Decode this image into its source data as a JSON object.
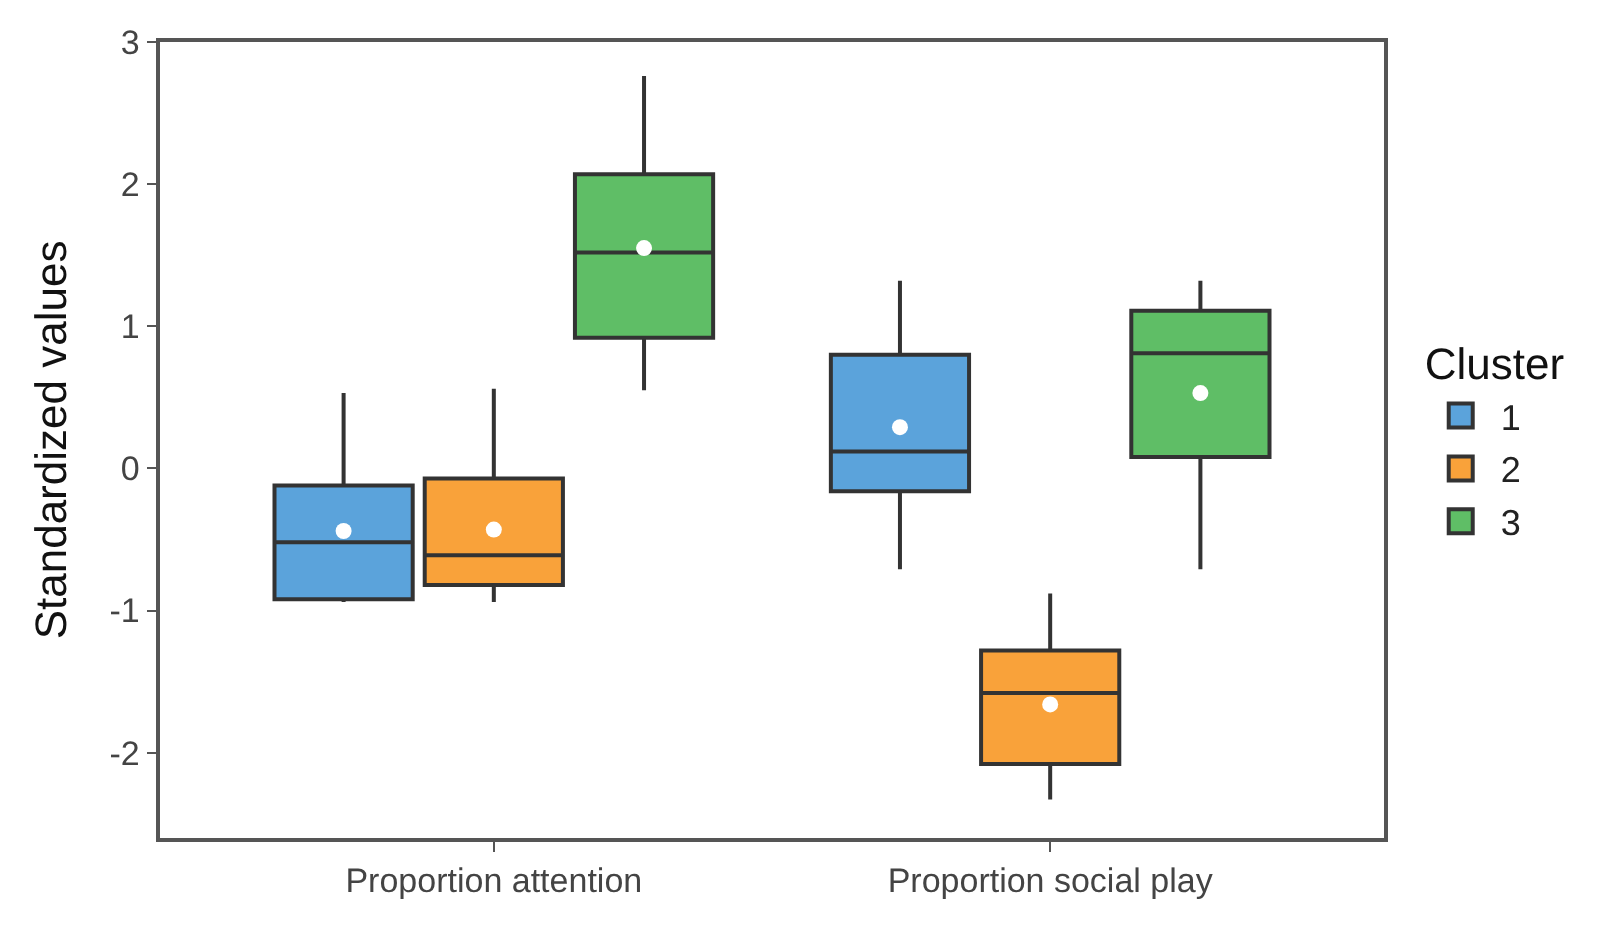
{
  "chart_data": {
    "type": "box",
    "ylabel": "Standardized values",
    "legend_title": "Cluster",
    "categories": [
      "Proportion attention",
      "Proportion social play"
    ],
    "series": [
      {
        "name": "1",
        "color": "#5ba3db",
        "boxes": [
          {
            "low": -0.94,
            "q1": -0.92,
            "median": -0.52,
            "q3": -0.12,
            "high": 0.53,
            "mean": -0.44
          },
          {
            "low": -0.71,
            "q1": -0.16,
            "median": 0.12,
            "q3": 0.8,
            "high": 1.32,
            "mean": 0.29
          }
        ]
      },
      {
        "name": "2",
        "color": "#f9a23a",
        "boxes": [
          {
            "low": -0.94,
            "q1": -0.82,
            "median": -0.61,
            "q3": -0.07,
            "high": 0.56,
            "mean": -0.43
          },
          {
            "low": -2.33,
            "q1": -2.08,
            "median": -1.58,
            "q3": -1.28,
            "high": -0.88,
            "mean": -1.66
          }
        ]
      },
      {
        "name": "3",
        "color": "#5fbe66",
        "boxes": [
          {
            "low": 0.55,
            "q1": 0.92,
            "median": 1.52,
            "q3": 2.07,
            "high": 2.76,
            "mean": 1.55
          },
          {
            "low": -0.71,
            "q1": 0.08,
            "median": 0.81,
            "q3": 1.11,
            "high": 1.32,
            "mean": 0.53
          }
        ]
      }
    ],
    "ylim": [
      -2.6,
      3.0
    ],
    "yticks": [
      -2,
      -1,
      0,
      1,
      2,
      3
    ],
    "legend": "right"
  }
}
